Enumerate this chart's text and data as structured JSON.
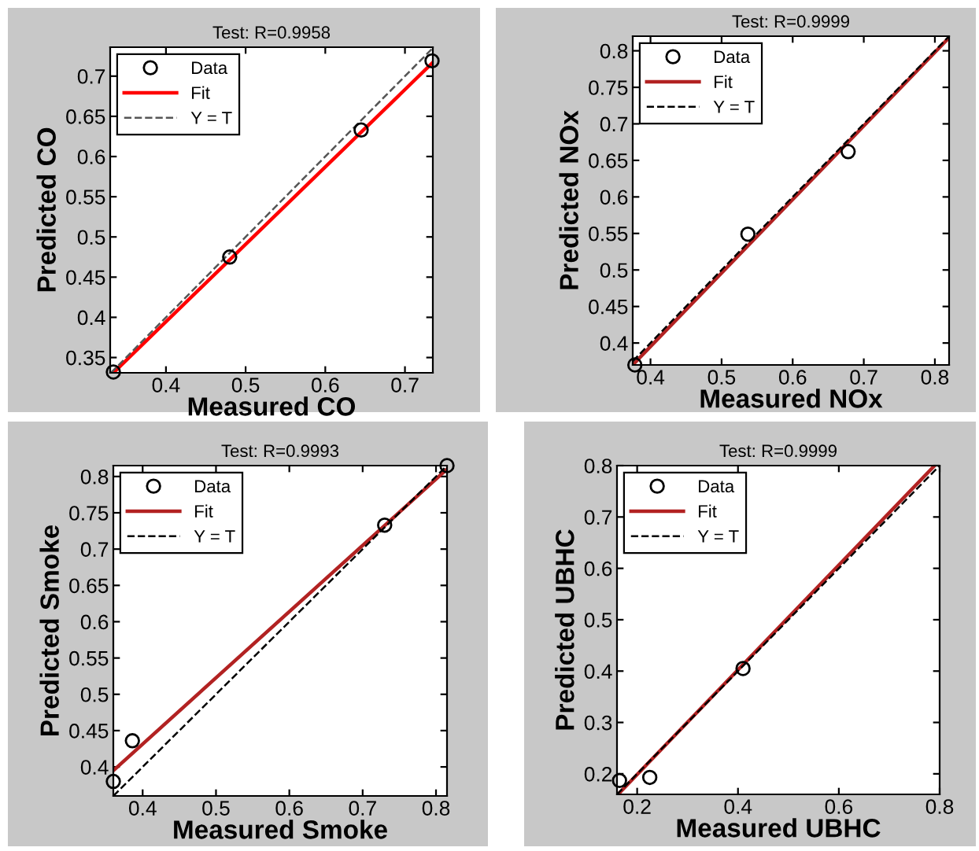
{
  "chart_data": [
    {
      "type": "scatter",
      "title": "Test: R=0.9958",
      "xlabel": "Measured CO",
      "ylabel": "Predicted CO",
      "xlim": [
        0.33,
        0.735
      ],
      "ylim": [
        0.331,
        0.736
      ],
      "xticks": [
        0.4,
        0.5,
        0.6,
        0.7
      ],
      "yticks": [
        0.35,
        0.4,
        0.45,
        0.5,
        0.55,
        0.6,
        0.65,
        0.7
      ],
      "legend": "top left",
      "grid": false,
      "series": [
        {
          "name": "Data",
          "marker": "circle",
          "color": "#000000",
          "x": [
            0.334,
            0.48,
            0.645,
            0.734
          ],
          "values": [
            0.332,
            0.475,
            0.633,
            0.719
          ]
        },
        {
          "name": "Fit",
          "type": "line",
          "line_style": "solid",
          "color": "#ff0000",
          "x": [
            0.334,
            0.735
          ],
          "values": [
            0.331,
            0.717
          ]
        },
        {
          "name": "Y = T",
          "type": "line",
          "line_style": "dashed",
          "color": "#555555",
          "x": [
            0.331,
            0.735
          ],
          "values": [
            0.331,
            0.735
          ]
        }
      ]
    },
    {
      "type": "scatter",
      "title": "Test: R=0.9999",
      "xlabel": "Measured NOx",
      "ylabel": "Predicted NOx",
      "xlim": [
        0.375,
        0.82
      ],
      "ylim": [
        0.37,
        0.82
      ],
      "xticks": [
        0.4,
        0.5,
        0.6,
        0.7,
        0.8
      ],
      "yticks": [
        0.4,
        0.45,
        0.5,
        0.55,
        0.6,
        0.65,
        0.7,
        0.75,
        0.8
      ],
      "legend": "top left",
      "grid": false,
      "series": [
        {
          "name": "Data",
          "marker": "circle",
          "color": "#000000",
          "x": [
            0.378,
            0.537,
            0.678
          ],
          "values": [
            0.37,
            0.549,
            0.662
          ]
        },
        {
          "name": "Fit",
          "type": "line",
          "line_style": "solid",
          "color": "#b22222",
          "x": [
            0.375,
            0.82
          ],
          "values": [
            0.37,
            0.818
          ]
        },
        {
          "name": "Y = T",
          "type": "line",
          "line_style": "dashed",
          "color": "#000000",
          "x": [
            0.375,
            0.82
          ],
          "values": [
            0.375,
            0.82
          ]
        }
      ]
    },
    {
      "type": "scatter",
      "title": "Test: R=0.9993",
      "xlabel": "Measured Smoke",
      "ylabel": "Predicted Smoke",
      "xlim": [
        0.36,
        0.815
      ],
      "ylim": [
        0.36,
        0.815
      ],
      "xticks": [
        0.4,
        0.5,
        0.6,
        0.7,
        0.8
      ],
      "yticks": [
        0.4,
        0.45,
        0.5,
        0.55,
        0.6,
        0.65,
        0.7,
        0.75,
        0.8
      ],
      "legend": "top left",
      "grid": false,
      "series": [
        {
          "name": "Data",
          "marker": "circle",
          "color": "#000000",
          "x": [
            0.36,
            0.386,
            0.73,
            0.815
          ],
          "values": [
            0.38,
            0.436,
            0.733,
            0.815
          ]
        },
        {
          "name": "Fit",
          "type": "line",
          "line_style": "solid",
          "color": "#b22222",
          "x": [
            0.36,
            0.815
          ],
          "values": [
            0.395,
            0.81
          ]
        },
        {
          "name": "Y = T",
          "type": "line",
          "line_style": "dashed",
          "color": "#000000",
          "x": [
            0.36,
            0.815
          ],
          "values": [
            0.36,
            0.815
          ]
        }
      ]
    },
    {
      "type": "scatter",
      "title": "Test: R=0.9999",
      "xlabel": "Measured UBHC",
      "ylabel": "Predicted UBHC",
      "xlim": [
        0.16,
        0.8
      ],
      "ylim": [
        0.16,
        0.8
      ],
      "xticks": [
        0.2,
        0.4,
        0.6,
        0.8
      ],
      "yticks": [
        0.2,
        0.3,
        0.4,
        0.5,
        0.6,
        0.7,
        0.8
      ],
      "legend": "top left",
      "grid": false,
      "series": [
        {
          "name": "Data",
          "marker": "circle",
          "color": "#000000",
          "x": [
            0.165,
            0.225,
            0.41
          ],
          "values": [
            0.187,
            0.193,
            0.405
          ]
        },
        {
          "name": "Fit",
          "type": "line",
          "line_style": "solid",
          "color": "#b22222",
          "x": [
            0.165,
            0.79
          ],
          "values": [
            0.163,
            0.8
          ]
        },
        {
          "name": "Y = T",
          "type": "line",
          "line_style": "dashed",
          "color": "#000000",
          "x": [
            0.16,
            0.8
          ],
          "values": [
            0.16,
            0.8
          ]
        }
      ]
    }
  ]
}
